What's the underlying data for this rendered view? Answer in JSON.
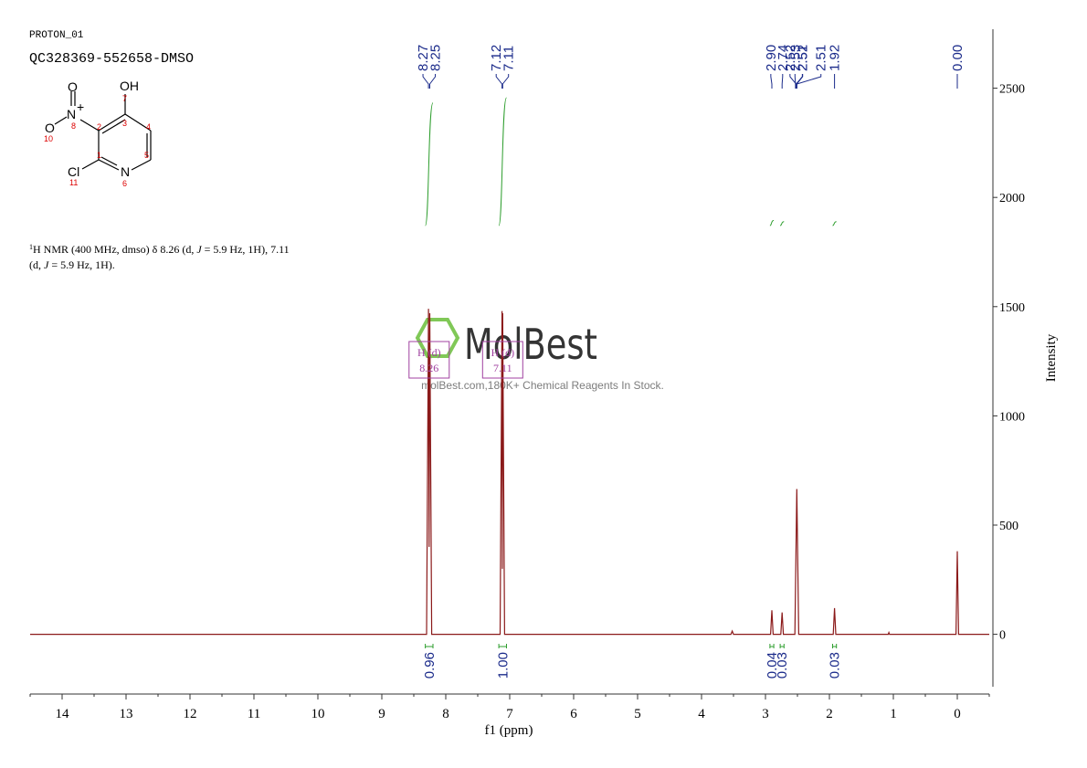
{
  "header": {
    "title": "PROTON_01",
    "sample": "QC328369-552658-DMSO"
  },
  "structure": {
    "atoms": {
      "o_top": "O",
      "n_nitro": "N",
      "charge": "+",
      "o_left": "O",
      "oh": "OH",
      "cl": "Cl",
      "n_ring": "N"
    },
    "numbers": {
      "oh": "7",
      "n_nitro": "8",
      "c2": "2",
      "c3": "3",
      "c4": "4",
      "c5": "5",
      "c1": "1",
      "n_ring": "6",
      "o_left": "10",
      "cl": "11"
    }
  },
  "description": {
    "sup": "1",
    "lines": [
      [
        "H NMR (400 MHz, dmso) δ 8.26 (d, ",
        "J",
        " = 5.9 Hz, 1H), 7.11"
      ],
      [
        "(d, ",
        "J",
        " = 5.9 Hz, 1H)."
      ]
    ]
  },
  "watermark": {
    "logo": "MolBest",
    "text": "molBest.com,180K+ Chemical Reagents In Stock."
  },
  "chart_data": {
    "type": "nmr",
    "xlabel": "f1 (ppm)",
    "ylabel": "Intensity",
    "xlim": [
      14.5,
      -0.5
    ],
    "xticks": [
      14,
      13,
      12,
      11,
      10,
      9,
      8,
      7,
      6,
      5,
      4,
      3,
      2,
      1,
      0
    ],
    "ylim": [
      -240,
      2770
    ],
    "yticks": [
      0,
      500,
      1000,
      1500,
      2000,
      2500
    ],
    "color": "#8b1a1a",
    "x": [
      14.5,
      8.3,
      8.27,
      8.26,
      8.25,
      8.22,
      7.15,
      7.12,
      7.115,
      7.11,
      7.08,
      3.54,
      3.52,
      3.5,
      2.92,
      2.9,
      2.88,
      2.76,
      2.74,
      2.72,
      2.54,
      2.51,
      2.48,
      1.94,
      1.92,
      1.9,
      1.08,
      1.07,
      1.06,
      0.02,
      0.0,
      -0.02,
      -0.5
    ],
    "values": [
      0,
      0,
      1490,
      400,
      1470,
      0,
      0,
      1480,
      300,
      1470,
      0,
      0,
      15,
      0,
      0,
      110,
      0,
      0,
      100,
      0,
      0,
      665,
      0,
      0,
      120,
      0,
      0,
      8,
      0,
      0,
      380,
      0,
      0
    ],
    "peaks": {
      "values": [
        8.27,
        8.25,
        7.12,
        7.11,
        2.9,
        2.74,
        2.53,
        2.52,
        2.52,
        2.51,
        2.51,
        1.92,
        0.0
      ],
      "value_labels": [
        "8.27",
        "8.25",
        "7.12",
        "7.11",
        "2.90",
        "2.74",
        "2.53",
        "2.52",
        "2.52",
        "2.51",
        "2.51",
        "1.92",
        "0.00"
      ],
      "color": "#1a2a8a"
    },
    "integrals": {
      "ranges": [
        [
          8.32,
          8.2
        ],
        [
          7.17,
          7.05
        ],
        [
          2.93,
          2.87
        ],
        [
          2.77,
          2.71
        ],
        [
          1.95,
          1.89
        ]
      ],
      "values": [
        0.96,
        1.0,
        0.04,
        0.03,
        0.03
      ],
      "value_labels": [
        "0.96",
        "1.00",
        "0.04",
        "0.03",
        "0.03"
      ],
      "color": "#2e9e2e"
    },
    "multiplets": [
      {
        "label": "H (d)",
        "shift": 8.26
      },
      {
        "label": "H (d)",
        "shift": 7.11
      }
    ]
  }
}
